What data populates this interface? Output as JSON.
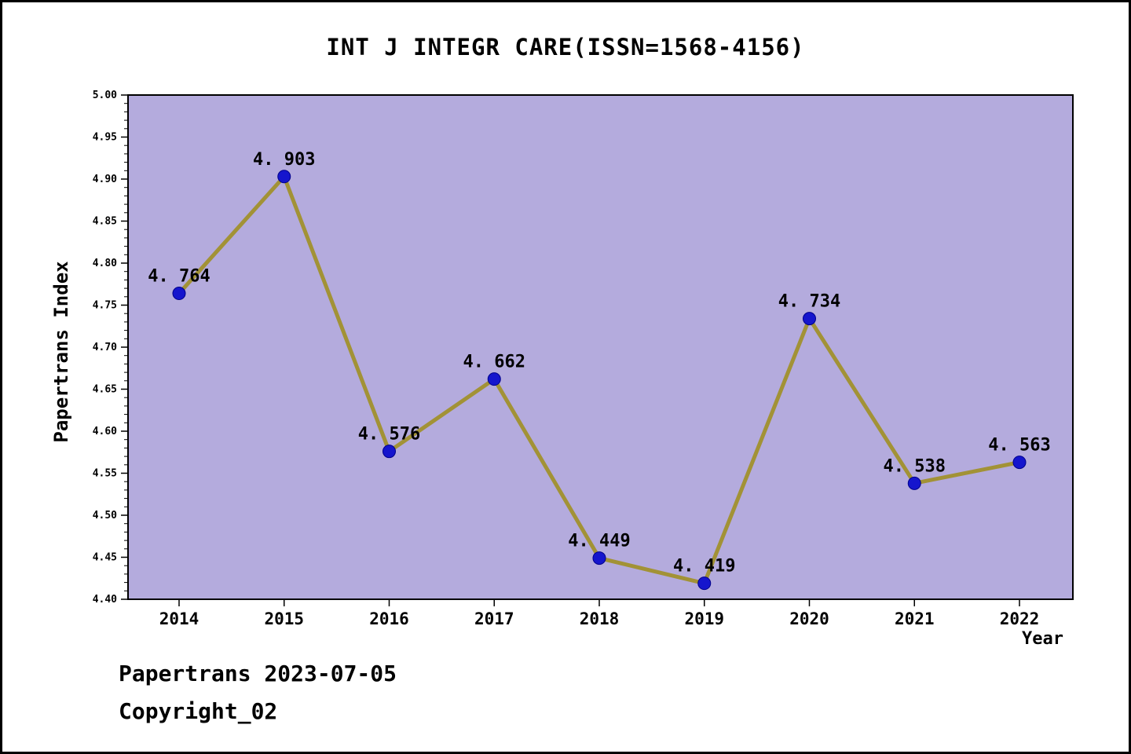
{
  "footer": {
    "line1": "Papertrans 2023-07-05",
    "line2": "Copyright_02"
  },
  "chart_data": {
    "type": "line",
    "title": "INT J INTEGR CARE(ISSN=1568-4156)",
    "xlabel": "Year",
    "ylabel": "Papertrans Index",
    "x": [
      "2014",
      "2015",
      "2016",
      "2017",
      "2018",
      "2019",
      "2020",
      "2021",
      "2022"
    ],
    "values": [
      4.764,
      4.903,
      4.576,
      4.662,
      4.449,
      4.419,
      4.734,
      4.538,
      4.563
    ],
    "point_labels": [
      "4. 764",
      "4. 903",
      "4. 576",
      "4. 662",
      "4. 449",
      "4. 419",
      "4. 734",
      "4. 538",
      "4. 563"
    ],
    "ylim": [
      4.4,
      5.0
    ],
    "ytick_step": 0.05,
    "yminor_step": 0.01,
    "ytick_decimals": 2,
    "grid": false,
    "legend": null,
    "colors": {
      "plot_bg": "#b4abdd",
      "line": "#a29236",
      "marker": "#1515cd",
      "marker_edge": "#00008b",
      "axis": "#000000",
      "text": "#000000"
    }
  }
}
